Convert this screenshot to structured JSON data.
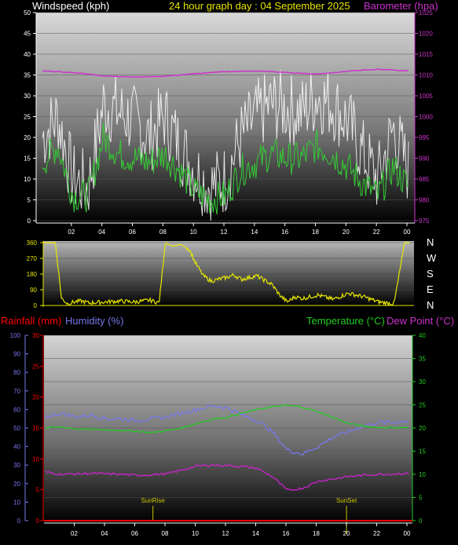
{
  "header": {
    "windspeed_label": "Windspeed (kph)",
    "title": "24 hour graph day : 04 September 2025",
    "barometer_label": "Barometer (hpa)"
  },
  "x_tick_labels": [
    "02",
    "04",
    "06",
    "08",
    "10",
    "12",
    "14",
    "16",
    "18",
    "20",
    "22",
    "00"
  ],
  "panel2_labels": {
    "rainfall": "Rainfall (mm)",
    "humidity": "Humidity (%)",
    "temperature": "Temperature (°C)",
    "dewpoint": "Dew Point (°C)",
    "sunrise": "SunRise",
    "sunset": "SunSet"
  },
  "compass": [
    "N",
    "W",
    "S",
    "E",
    "N"
  ],
  "colors": {
    "windspeed_gust": "#ffffff",
    "windspeed_avg": "#33cc33",
    "barometer": "#cc33cc",
    "wind_dir": "#e6e600",
    "temperature": "#22cc22",
    "dewpoint": "#cc22cc",
    "humidity": "#7777ee",
    "rainfall": "#ff0000",
    "sun_marker": "#c8c800"
  },
  "chart_data": [
    {
      "type": "line",
      "name": "wind_and_pressure",
      "x_hours_ago": [
        24,
        22,
        20,
        18,
        16,
        14,
        12,
        10,
        8,
        6,
        4,
        2,
        0
      ],
      "xlabels": [
        "02",
        "04",
        "06",
        "08",
        "10",
        "12",
        "14",
        "16",
        "18",
        "20",
        "22",
        "00"
      ],
      "y_left": {
        "label": "Windspeed (kph)",
        "lim": [
          0,
          50
        ],
        "ticks": [
          0,
          5,
          10,
          15,
          20,
          25,
          30,
          35,
          40,
          45,
          50
        ]
      },
      "y_right": {
        "label": "Barometer (hpa)",
        "lim": [
          975,
          1025
        ],
        "ticks": [
          975,
          980,
          985,
          990,
          995,
          1000,
          1005,
          1010,
          1015,
          1020,
          1025
        ]
      },
      "series": [
        {
          "key": "gust",
          "name": "Windspeed (kph)",
          "hours": [
            0,
            1,
            2,
            3,
            4,
            5,
            6,
            7,
            8,
            9,
            10,
            11,
            12,
            13,
            14,
            15,
            16,
            17,
            18,
            19,
            20,
            21,
            22,
            23,
            24
          ],
          "values": [
            20,
            25,
            10,
            8,
            28,
            26,
            24,
            20,
            25,
            18,
            12,
            8,
            10,
            20,
            25,
            28,
            27,
            26,
            30,
            28,
            24,
            16,
            10,
            22,
            12
          ]
        },
        {
          "key": "avg",
          "name": "Windspeed (kph)",
          "hours": [
            0,
            1,
            2,
            3,
            4,
            5,
            6,
            7,
            8,
            9,
            10,
            11,
            12,
            13,
            14,
            15,
            16,
            17,
            18,
            19,
            20,
            21,
            22,
            23,
            24
          ],
          "values": [
            14,
            18,
            6,
            6,
            20,
            16,
            15,
            14,
            16,
            12,
            7,
            5,
            6,
            12,
            14,
            16,
            15,
            15,
            18,
            16,
            13,
            9,
            6,
            13,
            8
          ]
        },
        {
          "key": "baro",
          "name": "Barometer (hpa)",
          "hours": [
            0,
            2,
            4,
            6,
            8,
            10,
            12,
            14,
            16,
            18,
            20,
            22,
            24
          ],
          "values": [
            1011,
            1010.6,
            1009.8,
            1009.5,
            1009.7,
            1010.3,
            1010.8,
            1011,
            1010.6,
            1010.2,
            1010.9,
            1011.4,
            1011
          ]
        }
      ]
    },
    {
      "type": "line",
      "name": "wind_direction",
      "y_left": {
        "lim": [
          0,
          360
        ],
        "ticks": [
          0,
          90,
          180,
          270,
          360
        ]
      },
      "series": [
        {
          "key": "dir",
          "hours": [
            0,
            0.8,
            1.2,
            1.6,
            2.0,
            2.5,
            3.0,
            4.0,
            5.0,
            6.0,
            7.0,
            7.6,
            8.0,
            8.5,
            9.0,
            9.6,
            10.0,
            10.5,
            11.0,
            11.5,
            12.0,
            12.5,
            13.0,
            14.0,
            15.0,
            15.5,
            16.0,
            16.5,
            17.0,
            18.0,
            19.0,
            20.0,
            21.0,
            22.0,
            23.0,
            23.7,
            24.0
          ],
          "values": [
            360,
            360,
            40,
            10,
            20,
            25,
            15,
            20,
            25,
            20,
            30,
            15,
            360,
            340,
            350,
            320,
            240,
            170,
            140,
            150,
            160,
            175,
            150,
            170,
            120,
            60,
            20,
            50,
            40,
            60,
            35,
            70,
            50,
            20,
            10,
            360,
            360
          ]
        }
      ]
    },
    {
      "type": "line",
      "name": "temp_humidity_rain",
      "y_left_outer": {
        "label": "Humidity (%)",
        "lim": [
          0,
          100
        ],
        "ticks": [
          0,
          10,
          20,
          30,
          40,
          50,
          60,
          70,
          80,
          90,
          100
        ]
      },
      "y_left_inner": {
        "label": "Rainfall (mm)",
        "lim": [
          0,
          30
        ],
        "ticks": [
          0,
          5,
          10,
          15,
          20,
          25,
          30
        ]
      },
      "y_right": {
        "label": "Temperature (°C)",
        "lim": [
          0,
          40
        ],
        "ticks": [
          0,
          5,
          10,
          15,
          20,
          25,
          30,
          35,
          40
        ]
      },
      "series": [
        {
          "key": "humidity",
          "name": "Humidity (%)",
          "hours": [
            0,
            1,
            2,
            3,
            4,
            5,
            6,
            7,
            8,
            9,
            10,
            11,
            12,
            13,
            14,
            15,
            16,
            17,
            18,
            19,
            20,
            21,
            22,
            23,
            24
          ],
          "values": [
            56,
            58,
            56,
            57,
            55,
            55,
            54,
            55,
            56,
            58,
            60,
            62,
            61,
            57,
            54,
            48,
            38,
            36,
            40,
            45,
            48,
            51,
            53,
            53,
            54
          ]
        },
        {
          "key": "temperature",
          "name": "Temperature (°C)",
          "hours": [
            0,
            1,
            2,
            3,
            4,
            5,
            6,
            7,
            8,
            9,
            10,
            11,
            12,
            13,
            14,
            15,
            16,
            17,
            18,
            19,
            20,
            21,
            22,
            23,
            24
          ],
          "values": [
            20,
            20.2,
            19.8,
            19.7,
            19.6,
            19.5,
            19.3,
            19,
            19.4,
            20,
            21,
            21.9,
            22.3,
            23.2,
            24,
            24.6,
            24.9,
            24.5,
            23.5,
            22.3,
            21,
            20.4,
            20.1,
            20.1,
            20.1
          ]
        },
        {
          "key": "dewpoint",
          "name": "Dew Point (°C)",
          "hours": [
            0,
            1,
            2,
            3,
            4,
            5,
            6,
            7,
            8,
            9,
            10,
            11,
            12,
            13,
            14,
            15,
            16,
            17,
            18,
            19,
            20,
            21,
            22,
            23,
            24
          ],
          "values": [
            10.5,
            10,
            10.1,
            10.2,
            10.1,
            10,
            9.8,
            9.9,
            10.1,
            10.9,
            11.8,
            12,
            11.9,
            11.7,
            11.3,
            9.5,
            6.5,
            7,
            8.5,
            9,
            9.5,
            9.8,
            10,
            10.1,
            10.2
          ]
        },
        {
          "key": "rainfall",
          "name": "Rainfall (mm)",
          "hours": [
            0,
            24
          ],
          "values": [
            0,
            0
          ]
        }
      ],
      "markers": [
        {
          "label": "SunRise",
          "hour": 7.1
        },
        {
          "label": "SunSet",
          "hour": 19.9
        }
      ]
    }
  ]
}
